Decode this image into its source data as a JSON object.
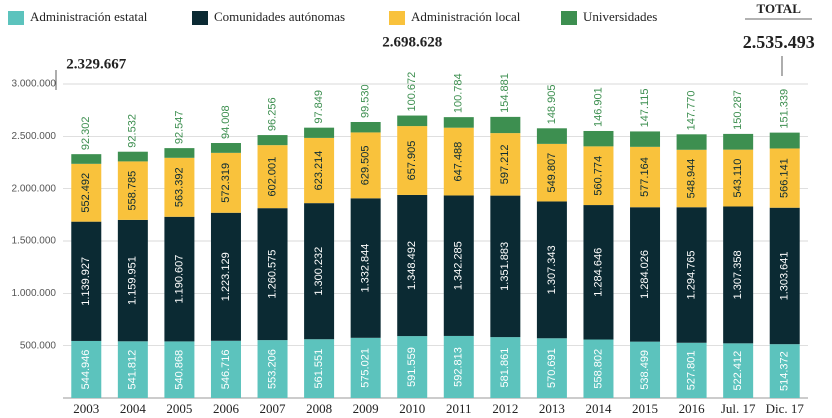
{
  "chart_data": {
    "type": "stacked_bar",
    "categories": [
      "2003",
      "2004",
      "2005",
      "2006",
      "2007",
      "2008",
      "2009",
      "2010",
      "2011",
      "2012",
      "2013",
      "2014",
      "2015",
      "2016",
      "Jul. 17",
      "Dic. 17"
    ],
    "series": [
      {
        "name": "Administración estatal",
        "color": "#5cc3bd",
        "values": [
          544946,
          541812,
          540868,
          546716,
          553206,
          561551,
          575021,
          591559,
          592813,
          581861,
          570691,
          558802,
          538499,
          527801,
          522412,
          514372
        ],
        "value_labels": [
          "544.946",
          "541.812",
          "540.868",
          "546.716",
          "553.206",
          "561.551",
          "575.021",
          "591.559",
          "592.813",
          "581.861",
          "570.691",
          "558.802",
          "538.499",
          "527.801",
          "522.412",
          "514.372"
        ]
      },
      {
        "name": "Comunidades autónomas",
        "color": "#0b2a33",
        "values": [
          1139927,
          1159951,
          1190607,
          1223129,
          1260575,
          1300232,
          1332844,
          1348492,
          1342285,
          1351883,
          1307343,
          1284646,
          1284026,
          1294765,
          1307358,
          1303641
        ],
        "value_labels": [
          "1.139.927",
          "1.159.951",
          "1.190.607",
          "1.223.129",
          "1.260.575",
          "1.300.232",
          "1.332.844",
          "1.348.492",
          "1.342.285",
          "1.351.883",
          "1.307.343",
          "1.284.646",
          "1.284.026",
          "1.294.765",
          "1.307.358",
          "1.303.641"
        ]
      },
      {
        "name": "Administración local",
        "color": "#f9c23c",
        "values": [
          552492,
          558785,
          563392,
          572319,
          602001,
          623214,
          629505,
          657905,
          647488,
          597212,
          549807,
          560774,
          577164,
          548944,
          543110,
          566141
        ],
        "value_labels": [
          "552.492",
          "558.785",
          "563.392",
          "572.319",
          "602.001",
          "623.214",
          "629.505",
          "657.905",
          "647.488",
          "597.212",
          "549.807",
          "560.774",
          "577.164",
          "548.944",
          "543.110",
          "566.141"
        ]
      },
      {
        "name": "Universidades",
        "color": "#3d8f50",
        "values": [
          92302,
          92532,
          92547,
          94008,
          96256,
          97849,
          99530,
          100672,
          100784,
          154881,
          148905,
          146901,
          147115,
          147770,
          150287,
          151339
        ],
        "value_labels": [
          "92.302",
          "92.532",
          "92.547",
          "94.008",
          "96.256",
          "97.849",
          "99.530",
          "100.672",
          "100.784",
          "154.881",
          "148.905",
          "146.901",
          "147.115",
          "147.770",
          "150.287",
          "151.339"
        ]
      }
    ],
    "ylim": [
      0,
      3000000
    ],
    "yticks": [
      {
        "value": 500000,
        "label": "500.000"
      },
      {
        "value": 1000000,
        "label": "1.000.000"
      },
      {
        "value": 1500000,
        "label": "1.500.000"
      },
      {
        "value": 2000000,
        "label": "2.000.000"
      },
      {
        "value": 2500000,
        "label": "2.500.000"
      },
      {
        "value": 3000000,
        "label": "3.000.000"
      }
    ],
    "grid": true,
    "annotations": [
      {
        "text": "2.329.667",
        "category": "2003"
      },
      {
        "text": "2.698.628",
        "category": "2010"
      },
      {
        "text": "TOTAL",
        "category": "Dic. 17"
      },
      {
        "text": "2.535.493",
        "category": "Dic. 17"
      }
    ]
  }
}
